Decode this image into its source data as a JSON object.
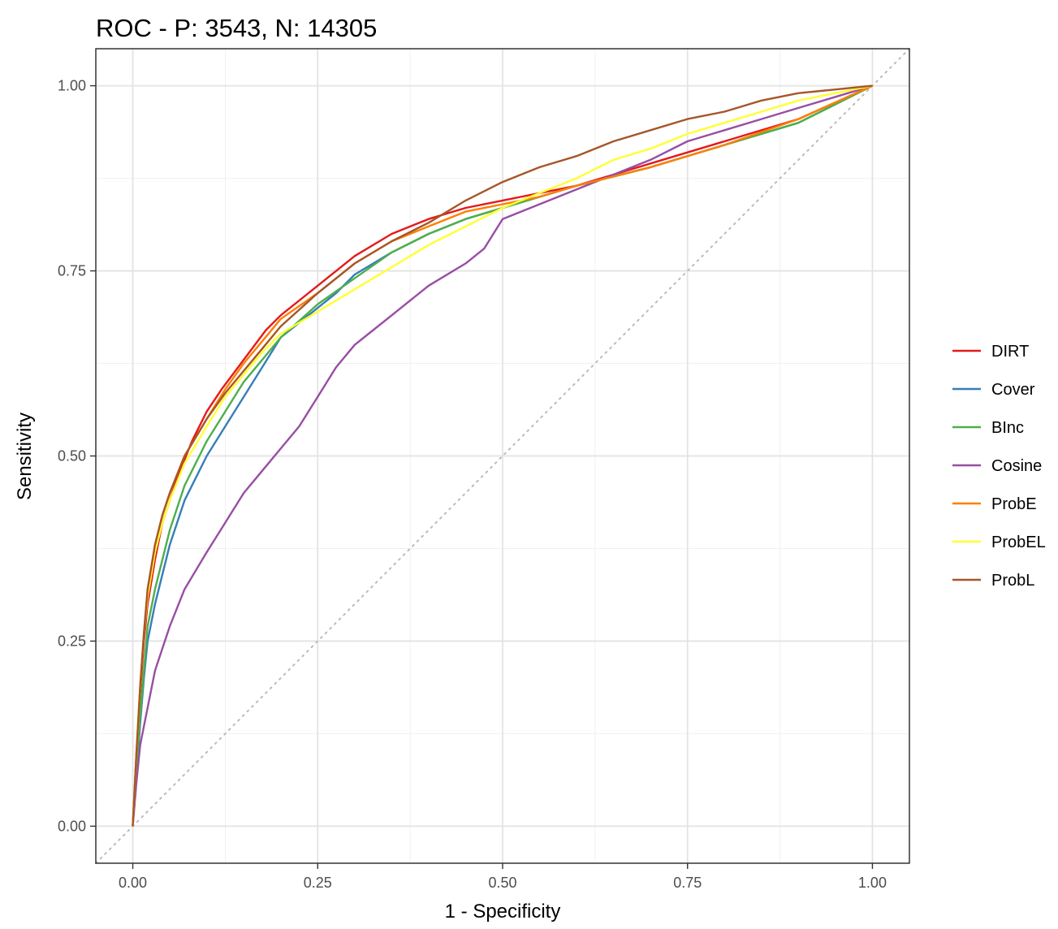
{
  "chart_data": {
    "type": "line",
    "title": "ROC - P: 3543, N: 14305",
    "xlabel": "1 - Specificity",
    "ylabel": "Sensitivity",
    "xlim": [
      -0.05,
      1.05
    ],
    "ylim": [
      -0.05,
      1.05
    ],
    "x_ticks": [
      "0.00",
      "0.25",
      "0.50",
      "0.75",
      "1.00"
    ],
    "y_ticks": [
      "0.00",
      "0.25",
      "0.50",
      "0.75",
      "1.00"
    ],
    "grid": true,
    "legend_position": "right",
    "reference_line": {
      "style": "dotted",
      "color": "#bbbbbb",
      "points": [
        [
          0,
          0
        ],
        [
          1,
          1
        ]
      ]
    },
    "series": [
      {
        "name": "DIRT",
        "color": "#e41a1c",
        "points": [
          [
            0,
            0
          ],
          [
            0.005,
            0.1
          ],
          [
            0.01,
            0.18
          ],
          [
            0.015,
            0.25
          ],
          [
            0.02,
            0.3
          ],
          [
            0.03,
            0.36
          ],
          [
            0.04,
            0.41
          ],
          [
            0.06,
            0.47
          ],
          [
            0.08,
            0.52
          ],
          [
            0.1,
            0.56
          ],
          [
            0.12,
            0.59
          ],
          [
            0.15,
            0.63
          ],
          [
            0.18,
            0.67
          ],
          [
            0.2,
            0.69
          ],
          [
            0.25,
            0.73
          ],
          [
            0.3,
            0.77
          ],
          [
            0.35,
            0.8
          ],
          [
            0.4,
            0.82
          ],
          [
            0.45,
            0.835
          ],
          [
            0.5,
            0.845
          ],
          [
            0.55,
            0.855
          ],
          [
            0.6,
            0.865
          ],
          [
            0.7,
            0.895
          ],
          [
            0.8,
            0.925
          ],
          [
            0.9,
            0.955
          ],
          [
            1,
            1
          ]
        ]
      },
      {
        "name": "Cover",
        "color": "#377eb8",
        "points": [
          [
            0,
            0
          ],
          [
            0.005,
            0.07
          ],
          [
            0.01,
            0.14
          ],
          [
            0.015,
            0.2
          ],
          [
            0.02,
            0.25
          ],
          [
            0.03,
            0.3
          ],
          [
            0.04,
            0.34
          ],
          [
            0.05,
            0.38
          ],
          [
            0.07,
            0.44
          ],
          [
            0.1,
            0.5
          ],
          [
            0.125,
            0.54
          ],
          [
            0.15,
            0.58
          ],
          [
            0.175,
            0.62
          ],
          [
            0.2,
            0.66
          ],
          [
            0.225,
            0.68
          ],
          [
            0.25,
            0.7
          ],
          [
            0.275,
            0.72
          ],
          [
            0.3,
            0.745
          ],
          [
            0.35,
            0.775
          ],
          [
            0.4,
            0.8
          ],
          [
            0.45,
            0.82
          ],
          [
            0.5,
            0.835
          ],
          [
            0.6,
            0.865
          ],
          [
            0.7,
            0.89
          ],
          [
            0.8,
            0.92
          ],
          [
            0.9,
            0.95
          ],
          [
            1,
            1
          ]
        ]
      },
      {
        "name": "BInc",
        "color": "#4daf4a",
        "points": [
          [
            0,
            0
          ],
          [
            0.005,
            0.08
          ],
          [
            0.01,
            0.15
          ],
          [
            0.015,
            0.21
          ],
          [
            0.02,
            0.27
          ],
          [
            0.03,
            0.32
          ],
          [
            0.04,
            0.36
          ],
          [
            0.05,
            0.4
          ],
          [
            0.07,
            0.46
          ],
          [
            0.1,
            0.52
          ],
          [
            0.125,
            0.56
          ],
          [
            0.15,
            0.6
          ],
          [
            0.175,
            0.63
          ],
          [
            0.2,
            0.66
          ],
          [
            0.25,
            0.705
          ],
          [
            0.3,
            0.74
          ],
          [
            0.35,
            0.775
          ],
          [
            0.4,
            0.8
          ],
          [
            0.45,
            0.82
          ],
          [
            0.5,
            0.835
          ],
          [
            0.6,
            0.865
          ],
          [
            0.7,
            0.89
          ],
          [
            0.8,
            0.92
          ],
          [
            0.9,
            0.95
          ],
          [
            1,
            1
          ]
        ]
      },
      {
        "name": "Cosine",
        "color": "#984ea3",
        "points": [
          [
            0,
            0
          ],
          [
            0.005,
            0.06
          ],
          [
            0.01,
            0.11
          ],
          [
            0.02,
            0.16
          ],
          [
            0.03,
            0.21
          ],
          [
            0.05,
            0.27
          ],
          [
            0.07,
            0.32
          ],
          [
            0.1,
            0.37
          ],
          [
            0.125,
            0.41
          ],
          [
            0.15,
            0.45
          ],
          [
            0.175,
            0.48
          ],
          [
            0.2,
            0.51
          ],
          [
            0.225,
            0.54
          ],
          [
            0.25,
            0.58
          ],
          [
            0.275,
            0.62
          ],
          [
            0.3,
            0.65
          ],
          [
            0.325,
            0.67
          ],
          [
            0.35,
            0.69
          ],
          [
            0.4,
            0.73
          ],
          [
            0.45,
            0.76
          ],
          [
            0.475,
            0.78
          ],
          [
            0.5,
            0.82
          ],
          [
            0.55,
            0.84
          ],
          [
            0.6,
            0.86
          ],
          [
            0.65,
            0.88
          ],
          [
            0.7,
            0.9
          ],
          [
            0.75,
            0.925
          ],
          [
            0.8,
            0.94
          ],
          [
            0.85,
            0.955
          ],
          [
            0.9,
            0.97
          ],
          [
            0.95,
            0.985
          ],
          [
            1,
            1
          ]
        ]
      },
      {
        "name": "ProbE",
        "color": "#ff7f00",
        "points": [
          [
            0,
            0
          ],
          [
            0.005,
            0.1
          ],
          [
            0.01,
            0.19
          ],
          [
            0.015,
            0.26
          ],
          [
            0.02,
            0.32
          ],
          [
            0.03,
            0.38
          ],
          [
            0.04,
            0.42
          ],
          [
            0.05,
            0.45
          ],
          [
            0.07,
            0.5
          ],
          [
            0.1,
            0.55
          ],
          [
            0.125,
            0.59
          ],
          [
            0.15,
            0.625
          ],
          [
            0.175,
            0.655
          ],
          [
            0.2,
            0.685
          ],
          [
            0.25,
            0.72
          ],
          [
            0.3,
            0.76
          ],
          [
            0.35,
            0.79
          ],
          [
            0.4,
            0.81
          ],
          [
            0.45,
            0.83
          ],
          [
            0.5,
            0.84
          ],
          [
            0.55,
            0.85
          ],
          [
            0.6,
            0.865
          ],
          [
            0.7,
            0.89
          ],
          [
            0.8,
            0.92
          ],
          [
            0.9,
            0.955
          ],
          [
            1,
            1
          ]
        ]
      },
      {
        "name": "ProbEL",
        "color": "#ffff33",
        "points": [
          [
            0,
            0
          ],
          [
            0.005,
            0.1
          ],
          [
            0.01,
            0.19
          ],
          [
            0.015,
            0.26
          ],
          [
            0.02,
            0.31
          ],
          [
            0.03,
            0.37
          ],
          [
            0.04,
            0.41
          ],
          [
            0.05,
            0.44
          ],
          [
            0.07,
            0.49
          ],
          [
            0.1,
            0.54
          ],
          [
            0.125,
            0.58
          ],
          [
            0.15,
            0.61
          ],
          [
            0.175,
            0.64
          ],
          [
            0.2,
            0.665
          ],
          [
            0.25,
            0.695
          ],
          [
            0.3,
            0.725
          ],
          [
            0.35,
            0.755
          ],
          [
            0.4,
            0.785
          ],
          [
            0.45,
            0.81
          ],
          [
            0.5,
            0.835
          ],
          [
            0.55,
            0.855
          ],
          [
            0.6,
            0.875
          ],
          [
            0.65,
            0.9
          ],
          [
            0.7,
            0.915
          ],
          [
            0.75,
            0.935
          ],
          [
            0.8,
            0.95
          ],
          [
            0.85,
            0.965
          ],
          [
            0.9,
            0.98
          ],
          [
            0.95,
            0.99
          ],
          [
            1,
            1
          ]
        ]
      },
      {
        "name": "ProbL",
        "color": "#a65628",
        "points": [
          [
            0,
            0
          ],
          [
            0.005,
            0.1
          ],
          [
            0.01,
            0.19
          ],
          [
            0.015,
            0.26
          ],
          [
            0.02,
            0.32
          ],
          [
            0.03,
            0.38
          ],
          [
            0.04,
            0.42
          ],
          [
            0.05,
            0.45
          ],
          [
            0.07,
            0.5
          ],
          [
            0.1,
            0.55
          ],
          [
            0.125,
            0.585
          ],
          [
            0.15,
            0.615
          ],
          [
            0.175,
            0.645
          ],
          [
            0.2,
            0.675
          ],
          [
            0.25,
            0.72
          ],
          [
            0.3,
            0.76
          ],
          [
            0.35,
            0.79
          ],
          [
            0.4,
            0.815
          ],
          [
            0.45,
            0.845
          ],
          [
            0.5,
            0.87
          ],
          [
            0.55,
            0.89
          ],
          [
            0.6,
            0.905
          ],
          [
            0.65,
            0.925
          ],
          [
            0.7,
            0.94
          ],
          [
            0.75,
            0.955
          ],
          [
            0.8,
            0.965
          ],
          [
            0.85,
            0.98
          ],
          [
            0.9,
            0.99
          ],
          [
            0.95,
            0.995
          ],
          [
            1,
            1
          ]
        ]
      }
    ]
  }
}
